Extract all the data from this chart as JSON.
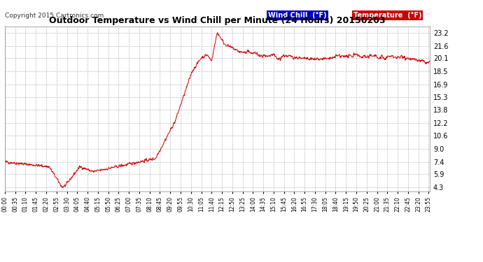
{
  "title": "Outdoor Temperature vs Wind Chill per Minute (24 Hours) 20150203",
  "copyright_text": "Copyright 2015 Cartronics.com",
  "background_color": "#ffffff",
  "plot_bg_color": "#ffffff",
  "line_color": "#cc0000",
  "grid_color": "#aaaaaa",
  "yticks": [
    4.3,
    5.9,
    7.4,
    9.0,
    10.6,
    12.2,
    13.8,
    15.3,
    16.9,
    18.5,
    20.1,
    21.6,
    23.2
  ],
  "ylim": [
    3.8,
    24.0
  ],
  "legend_wind_chill_bg": "#0000bb",
  "legend_temp_bg": "#cc0000",
  "xtick_interval": 35,
  "n_minutes": 1440
}
